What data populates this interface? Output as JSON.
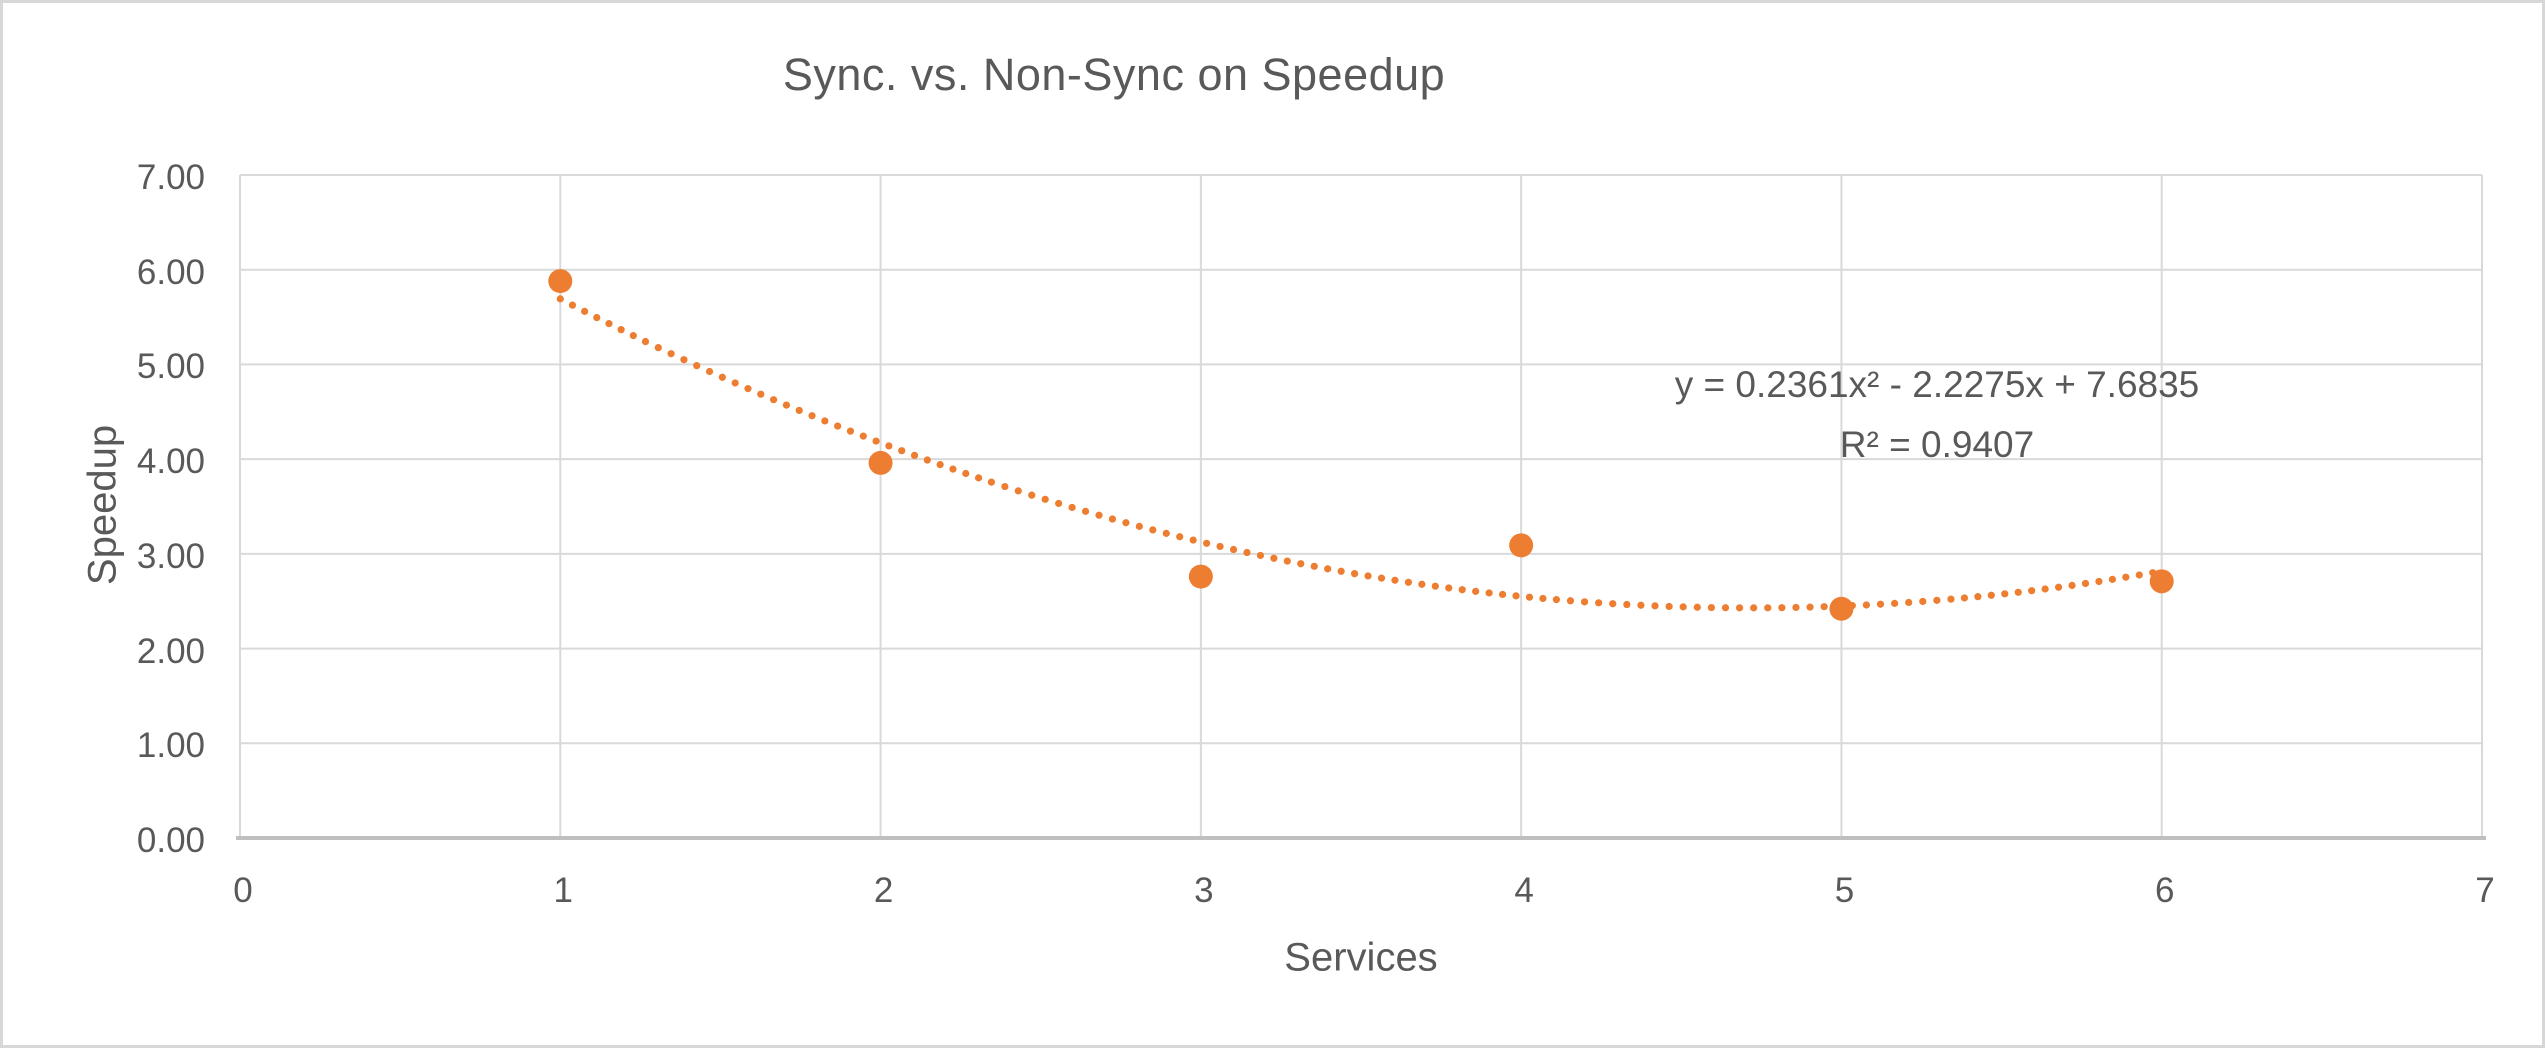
{
  "chart_data": {
    "type": "scatter",
    "title": "Sync. vs. Non-Sync on Speedup",
    "xlabel": "Services",
    "ylabel": "Speedup",
    "x": [
      1,
      2,
      3,
      4,
      5,
      6
    ],
    "y": [
      5.88,
      3.96,
      2.76,
      3.09,
      2.42,
      2.71
    ],
    "xlim": [
      0,
      7
    ],
    "ylim": [
      0,
      7
    ],
    "x_ticks": [
      "0",
      "1",
      "2",
      "3",
      "4",
      "5",
      "6",
      "7"
    ],
    "y_ticks": [
      "0.00",
      "1.00",
      "2.00",
      "3.00",
      "4.00",
      "5.00",
      "6.00",
      "7.00"
    ],
    "grid": true,
    "legend": "none",
    "trendline": {
      "type": "polynomial",
      "order": 2,
      "coefficients": {
        "a": 0.2361,
        "b": -2.2275,
        "c": 7.6835
      },
      "x_start": 1,
      "x_end": 6,
      "equation": "y = 0.2361x² - 2.2275x + 7.6835",
      "r2": 0.9407,
      "r2_label": "R² = 0.9407",
      "style": "dotted"
    },
    "colors": {
      "marker": "#ED7D31",
      "trendline": "#ED7D31",
      "text": "#595959",
      "gridline": "#D9D9D9",
      "axis_line": "#BFBFBF",
      "background": "#FFFFFF",
      "border": "#D7D7D7"
    }
  }
}
